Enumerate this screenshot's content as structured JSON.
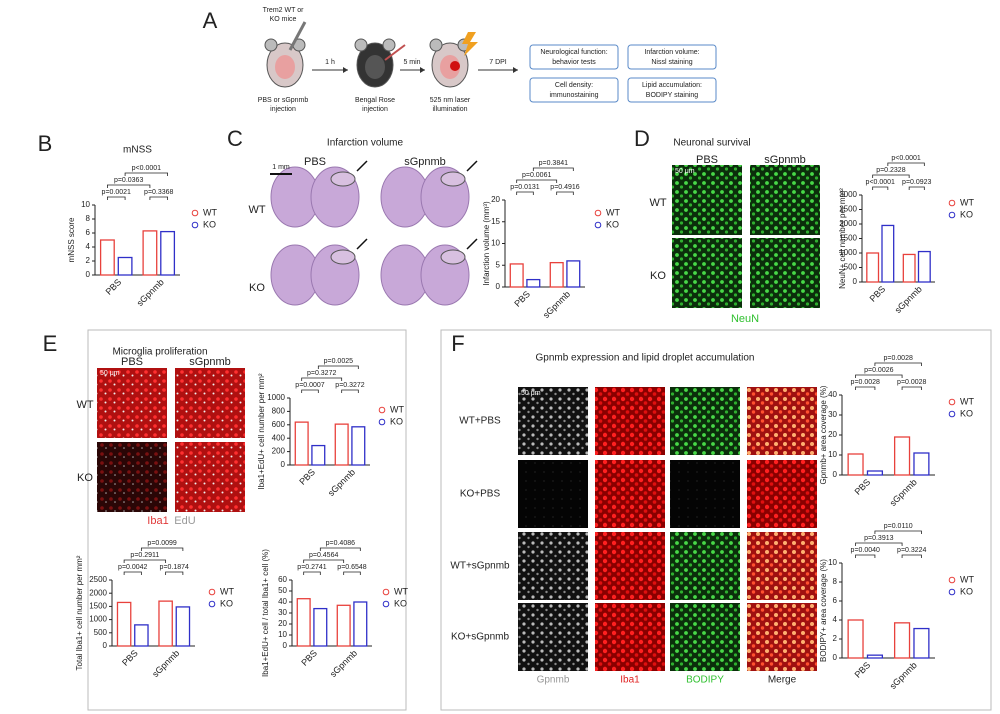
{
  "schematic": {
    "letter": "A",
    "mice_label": [
      "Trem2 WT or",
      "KO mice"
    ],
    "injection": [
      "PBS or sGpnmb",
      "injection"
    ],
    "step1": "1 h",
    "bengal": [
      "Bengal Rose",
      "injection"
    ],
    "step2": "5 min",
    "laser": [
      "525 nm laser",
      "illumination"
    ],
    "step3": "7 DPI",
    "outcomes": [
      [
        "Neurological function:",
        "behavior tests"
      ],
      [
        "Infarction volume:",
        "Nissl staining"
      ],
      [
        "Cell density:",
        "immunostaining"
      ],
      [
        "Lipid accumulation:",
        "BODIPY staining"
      ]
    ]
  },
  "panel_b": {
    "letter": "B"
  },
  "panel_c": {
    "letter": "C",
    "title": "Infarction volume",
    "columns": [
      "PBS",
      "sGpnmb"
    ],
    "rows": [
      "WT",
      "KO"
    ],
    "scale": "1 mm"
  },
  "panel_d": {
    "letter": "D",
    "title": "Neuronal survival",
    "columns": [
      "PBS",
      "sGpnmb"
    ],
    "rows": [
      "WT",
      "KO"
    ],
    "scale": "50 μm",
    "stain": "NeuN"
  },
  "panel_e": {
    "letter": "E",
    "title": "Microglia proliferation",
    "columns": [
      "PBS",
      "sGpnmb"
    ],
    "rows": [
      "WT",
      "KO"
    ],
    "scale": "50 μm",
    "stains": [
      "Iba1",
      "EdU"
    ]
  },
  "panel_f": {
    "letter": "F",
    "title": "Gpnmb expression and lipid droplet accumulation",
    "rows": [
      "WT+PBS",
      "KO+PBS",
      "WT+sGpnmb",
      "KO+sGpnmb"
    ],
    "columns": [
      "Gpnmb",
      "Iba1",
      "BODIPY",
      "Merge"
    ],
    "scale": "50 μm"
  },
  "chart_data": [
    {
      "type": "bar",
      "title": "mNSS",
      "ylabel": "mNSS score",
      "categories": [
        "PBS",
        "sGpnmb"
      ],
      "series": [
        {
          "name": "WT",
          "color": "#e8413c",
          "values": [
            5,
            6.3
          ]
        },
        {
          "name": "KO",
          "color": "#2f2fc8",
          "values": [
            2.5,
            6.2
          ]
        }
      ],
      "ylim": [
        0,
        10
      ],
      "yticks": [
        0,
        2,
        4,
        6,
        8,
        10
      ],
      "annotations": [
        "p=0.0021",
        "p=0.3368",
        "p=0.0363",
        "p<0.0001"
      ]
    },
    {
      "type": "bar",
      "ylabel": "Infarction volume (mm³)",
      "categories": [
        "PBS",
        "sGpnmb"
      ],
      "series": [
        {
          "name": "WT",
          "color": "#e8413c",
          "values": [
            5.3,
            5.6
          ]
        },
        {
          "name": "KO",
          "color": "#2f2fc8",
          "values": [
            1.7,
            6
          ]
        }
      ],
      "ylim": [
        0,
        20
      ],
      "yticks": [
        0,
        5,
        10,
        15,
        20
      ],
      "annotations": [
        "p=0.0131",
        "p=0.4916",
        "p=0.0061",
        "p=0.3841"
      ]
    },
    {
      "type": "bar",
      "ylabel": "NeuN+ cell number per mm²",
      "categories": [
        "PBS",
        "sGpnmb"
      ],
      "series": [
        {
          "name": "WT",
          "color": "#e8413c",
          "values": [
            1000,
            950
          ]
        },
        {
          "name": "KO",
          "color": "#2f2fc8",
          "values": [
            1950,
            1050
          ]
        }
      ],
      "ylim": [
        0,
        3000
      ],
      "yticks": [
        0,
        500,
        1000,
        1500,
        2000,
        2500,
        3000
      ],
      "annotations": [
        "p<0.0001",
        "p=0.0923",
        "p=0.2328",
        "p<0.0001"
      ]
    },
    {
      "type": "bar",
      "ylabel": "Iba1+EdU+ cell number per mm²",
      "categories": [
        "PBS",
        "sGpnmb"
      ],
      "series": [
        {
          "name": "WT",
          "color": "#e8413c",
          "values": [
            640,
            610
          ]
        },
        {
          "name": "KO",
          "color": "#2f2fc8",
          "values": [
            290,
            570
          ]
        }
      ],
      "ylim": [
        0,
        1000
      ],
      "yticks": [
        0,
        200,
        400,
        600,
        800,
        1000
      ],
      "annotations": [
        "p=0.0007",
        "p=0.3272",
        "p=0.3272",
        "p=0.0025"
      ]
    },
    {
      "type": "bar",
      "ylabel": "Total Iba1+ cell number per mm²",
      "categories": [
        "PBS",
        "sGpnmb"
      ],
      "series": [
        {
          "name": "WT",
          "color": "#e8413c",
          "values": [
            1650,
            1700
          ]
        },
        {
          "name": "KO",
          "color": "#2f2fc8",
          "values": [
            800,
            1480
          ]
        }
      ],
      "ylim": [
        0,
        2500
      ],
      "yticks": [
        0,
        500,
        1000,
        1500,
        2000,
        2500
      ],
      "annotations": [
        "p=0.0042",
        "p=0.1874",
        "p=0.2911",
        "p=0.0099"
      ]
    },
    {
      "type": "bar",
      "ylabel": "Iba1+EdU+ cell / total Iba1+ cell (%)",
      "categories": [
        "PBS",
        "sGpnmb"
      ],
      "series": [
        {
          "name": "WT",
          "color": "#e8413c",
          "values": [
            43,
            37
          ]
        },
        {
          "name": "KO",
          "color": "#2f2fc8",
          "values": [
            34,
            40
          ]
        }
      ],
      "ylim": [
        0,
        60
      ],
      "yticks": [
        0,
        10,
        20,
        30,
        40,
        50,
        60
      ],
      "annotations": [
        "p=0.2741",
        "p=0.6548",
        "p=0.4564",
        "p=0.4086"
      ]
    },
    {
      "type": "bar",
      "ylabel": "Gpnmb+ area coverage (%)",
      "categories": [
        "PBS",
        "sGpnmb"
      ],
      "series": [
        {
          "name": "WT",
          "color": "#e8413c",
          "values": [
            10.5,
            19
          ]
        },
        {
          "name": "KO",
          "color": "#2f2fc8",
          "values": [
            2,
            11
          ]
        }
      ],
      "ylim": [
        0,
        40
      ],
      "yticks": [
        0,
        10,
        20,
        30,
        40
      ],
      "annotations": [
        "p=0.0028",
        "p=0.0028",
        "p=0.0026",
        "p=0.0028"
      ]
    },
    {
      "type": "bar",
      "ylabel": "BODIPY+ area coverage (%)",
      "categories": [
        "PBS",
        "sGpnmb"
      ],
      "series": [
        {
          "name": "WT",
          "color": "#e8413c",
          "values": [
            4,
            3.7
          ]
        },
        {
          "name": "KO",
          "color": "#2f2fc8",
          "values": [
            0.3,
            3.1
          ]
        }
      ],
      "ylim": [
        0,
        10
      ],
      "yticks": [
        0,
        2,
        4,
        6,
        8,
        10
      ],
      "annotations": [
        "p=0.0040",
        "p=0.3224",
        "p=0.3913",
        "p=0.0110"
      ]
    }
  ]
}
